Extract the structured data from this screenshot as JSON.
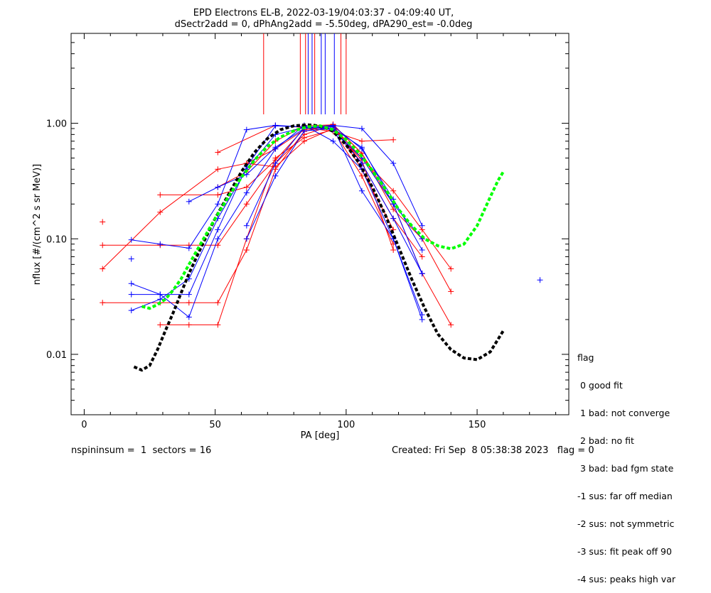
{
  "chart_data": {
    "type": "line",
    "title": "EPD Electrons EL-B, 2022-03-19/04:03:37 - 04:09:40 UT,",
    "subtitle": "dSectr2add = 0, dPhAng2add = -5.50deg, dPA290_est=  -0.0deg",
    "xlabel": "PA [deg]",
    "ylabel": "nflux [#/(cm^2 s sr MeV)]",
    "xlim": [
      -5,
      185
    ],
    "ylim": [
      0.003,
      6
    ],
    "yscale": "log",
    "x_ticks": [
      0,
      50,
      100,
      150
    ],
    "y_ticks": [
      0.01,
      0.1,
      1.0
    ],
    "y_tick_labels": [
      "0.01",
      "0.10",
      "1.00"
    ],
    "colors": {
      "red": "#ff0000",
      "blue": "#0000ff",
      "black": "#000000",
      "green": "#00ff00"
    },
    "vertical_markers": [
      {
        "x": 68.5,
        "color": "red"
      },
      {
        "x": 82.5,
        "color": "red"
      },
      {
        "x": 84.5,
        "color": "red"
      },
      {
        "x": 85.5,
        "color": "blue"
      },
      {
        "x": 87,
        "color": "blue"
      },
      {
        "x": 88,
        "color": "red"
      },
      {
        "x": 90.5,
        "color": "blue"
      },
      {
        "x": 92,
        "color": "blue"
      },
      {
        "x": 95.5,
        "color": "blue"
      },
      {
        "x": 98,
        "color": "red"
      },
      {
        "x": 100,
        "color": "red"
      }
    ],
    "series": [
      {
        "color": "red",
        "points": [
          [
            7,
            0.028
          ],
          [
            29,
            0.028
          ],
          [
            40,
            0.028
          ],
          [
            51,
            0.028
          ],
          [
            62,
            0.08
          ],
          [
            73,
            0.4
          ],
          [
            84,
            0.85
          ],
          [
            95,
            0.98
          ],
          [
            106,
            0.55
          ],
          [
            118,
            0.18
          ],
          [
            129,
            0.1
          ],
          [
            140,
            0.035
          ]
        ]
      },
      {
        "color": "red",
        "points": [
          [
            7,
            0.055
          ],
          [
            29,
            0.17
          ],
          [
            51,
            0.4
          ],
          [
            62,
            0.45
          ],
          [
            73,
            0.6
          ],
          [
            84,
            0.88
          ],
          [
            95,
            0.94
          ],
          [
            106,
            0.5
          ],
          [
            118,
            0.26
          ],
          [
            129,
            0.12
          ],
          [
            140,
            0.055
          ]
        ]
      },
      {
        "color": "red",
        "points": [
          [
            7,
            0.088
          ],
          [
            29,
            0.088
          ],
          [
            40,
            0.088
          ],
          [
            51,
            0.088
          ],
          [
            62,
            0.2
          ],
          [
            73,
            0.45
          ],
          [
            84,
            0.8
          ],
          [
            95,
            0.96
          ],
          [
            106,
            0.45
          ],
          [
            118,
            0.15
          ],
          [
            129,
            0.07
          ]
        ]
      },
      {
        "color": "red",
        "points": [
          [
            29,
            0.24
          ],
          [
            51,
            0.24
          ],
          [
            62,
            0.28
          ],
          [
            73,
            0.48
          ],
          [
            84,
            0.9
          ],
          [
            95,
            0.97
          ],
          [
            106,
            0.4
          ],
          [
            118,
            0.12
          ]
        ]
      },
      {
        "color": "red",
        "points": [
          [
            51,
            0.56
          ],
          [
            73,
            0.96
          ],
          [
            84,
            0.92
          ],
          [
            95,
            0.85
          ],
          [
            106,
            0.7
          ],
          [
            118,
            0.72
          ]
        ]
      },
      {
        "color": "red",
        "points": [
          [
            29,
            0.018
          ],
          [
            40,
            0.018
          ],
          [
            51,
            0.018
          ],
          [
            62,
            0.1
          ],
          [
            73,
            0.5
          ],
          [
            84,
            0.75
          ],
          [
            95,
            0.88
          ],
          [
            106,
            0.35
          ],
          [
            118,
            0.09
          ]
        ]
      },
      {
        "color": "red",
        "points": [
          [
            51,
            0.28
          ],
          [
            62,
            0.38
          ],
          [
            73,
            0.7
          ],
          [
            84,
            0.95
          ],
          [
            95,
            0.97
          ],
          [
            106,
            0.55
          ],
          [
            118,
            0.2
          ],
          [
            129,
            0.05
          ],
          [
            140,
            0.018
          ]
        ]
      },
      {
        "color": "red",
        "points": [
          [
            62,
            0.45
          ],
          [
            73,
            0.42
          ],
          [
            84,
            0.7
          ],
          [
            95,
            0.9
          ],
          [
            106,
            0.48
          ],
          [
            118,
            0.08
          ]
        ]
      },
      {
        "color": "blue",
        "points": [
          [
            18,
            0.024
          ],
          [
            29,
            0.03
          ],
          [
            40,
            0.045
          ],
          [
            51,
            0.15
          ],
          [
            62,
            0.4
          ],
          [
            73,
            0.8
          ],
          [
            84,
            0.92
          ],
          [
            95,
            0.96
          ],
          [
            106,
            0.9
          ],
          [
            118,
            0.45
          ],
          [
            129,
            0.13
          ]
        ]
      },
      {
        "color": "blue",
        "points": [
          [
            18,
            0.033
          ],
          [
            29,
            0.033
          ],
          [
            40,
            0.033
          ],
          [
            51,
            0.12
          ],
          [
            62,
            0.42
          ],
          [
            73,
            0.95
          ],
          [
            84,
            0.93
          ],
          [
            95,
            0.9
          ],
          [
            106,
            0.62
          ],
          [
            118,
            0.2
          ],
          [
            129,
            0.1
          ]
        ]
      },
      {
        "color": "blue",
        "points": [
          [
            18,
            0.041
          ],
          [
            29,
            0.033
          ],
          [
            40,
            0.021
          ],
          [
            51,
            0.1
          ],
          [
            62,
            0.25
          ],
          [
            73,
            0.6
          ],
          [
            84,
            0.96
          ],
          [
            95,
            0.7
          ],
          [
            106,
            0.4
          ],
          [
            118,
            0.1
          ],
          [
            129,
            0.022
          ]
        ]
      },
      {
        "color": "blue",
        "points": [
          [
            18,
            0.098
          ],
          [
            29,
            0.09
          ],
          [
            40,
            0.083
          ],
          [
            51,
            0.2
          ],
          [
            62,
            0.88
          ],
          [
            73,
            0.96
          ],
          [
            84,
            0.93
          ],
          [
            95,
            0.88
          ],
          [
            106,
            0.5
          ],
          [
            118,
            0.2
          ],
          [
            129,
            0.05
          ]
        ]
      },
      {
        "color": "blue",
        "points": [
          [
            40,
            0.21
          ],
          [
            51,
            0.28
          ],
          [
            62,
            0.36
          ],
          [
            73,
            0.62
          ],
          [
            84,
            0.9
          ],
          [
            95,
            0.93
          ],
          [
            106,
            0.26
          ],
          [
            118,
            0.1
          ],
          [
            129,
            0.02
          ]
        ]
      },
      {
        "color": "blue",
        "points": [
          [
            62,
            0.13
          ],
          [
            73,
            0.45
          ],
          [
            84,
            0.92
          ],
          [
            95,
            0.95
          ],
          [
            106,
            0.6
          ],
          [
            118,
            0.22
          ],
          [
            129,
            0.08
          ]
        ]
      },
      {
        "color": "blue",
        "points": [
          [
            62,
            0.1
          ],
          [
            73,
            0.35
          ],
          [
            84,
            0.86
          ],
          [
            95,
            0.9
          ],
          [
            106,
            0.45
          ],
          [
            118,
            0.15
          ],
          [
            129,
            0.05
          ]
        ]
      }
    ],
    "isolated_points": [
      {
        "x": 7,
        "y": 0.14,
        "color": "red"
      },
      {
        "x": 18,
        "y": 0.067,
        "color": "blue"
      },
      {
        "x": 174,
        "y": 0.044,
        "color": "blue"
      }
    ],
    "fit_curves": [
      {
        "color": "black",
        "style": "dashed",
        "x": [
          19,
          22,
          25,
          28,
          31,
          34,
          37,
          40,
          45,
          50,
          55,
          60,
          65,
          70,
          75,
          80,
          85,
          88,
          92,
          95,
          100,
          105,
          110,
          115,
          120,
          125,
          130,
          135,
          140,
          145,
          150,
          155,
          160
        ],
        "y": [
          0.0078,
          0.0073,
          0.008,
          0.011,
          0.016,
          0.023,
          0.034,
          0.05,
          0.088,
          0.15,
          0.24,
          0.38,
          0.56,
          0.74,
          0.88,
          0.95,
          0.97,
          0.96,
          0.92,
          0.85,
          0.65,
          0.45,
          0.28,
          0.16,
          0.085,
          0.045,
          0.025,
          0.015,
          0.011,
          0.0093,
          0.009,
          0.0105,
          0.016
        ]
      },
      {
        "color": "green",
        "style": "dashed",
        "x": [
          22,
          25,
          28,
          31,
          34,
          37,
          40,
          45,
          50,
          55,
          60,
          65,
          70,
          75,
          80,
          85,
          90,
          95,
          100,
          105,
          110,
          115,
          120,
          125,
          130,
          135,
          140,
          145,
          150,
          155,
          158,
          160
        ],
        "y": [
          0.026,
          0.025,
          0.027,
          0.03,
          0.036,
          0.045,
          0.06,
          0.095,
          0.15,
          0.23,
          0.34,
          0.48,
          0.63,
          0.76,
          0.86,
          0.93,
          0.95,
          0.88,
          0.72,
          0.55,
          0.39,
          0.27,
          0.18,
          0.13,
          0.1,
          0.087,
          0.082,
          0.09,
          0.13,
          0.23,
          0.32,
          0.38
        ]
      }
    ]
  },
  "legend": {
    "title": "flag",
    "items": [
      " 0 good fit",
      " 1 bad: not converge",
      " 2 bad: no fit",
      " 3 bad: bad fgm state",
      "-1 sus: far off median",
      "-2 sus: not symmetric",
      "-3 sus: fit peak off 90",
      "-4 sus: peaks high var"
    ]
  },
  "footer": {
    "left": "nspininsum =  1  sectors = 16",
    "right": "Created: Fri Sep  8 05:38:38 2023   flag = 0"
  }
}
